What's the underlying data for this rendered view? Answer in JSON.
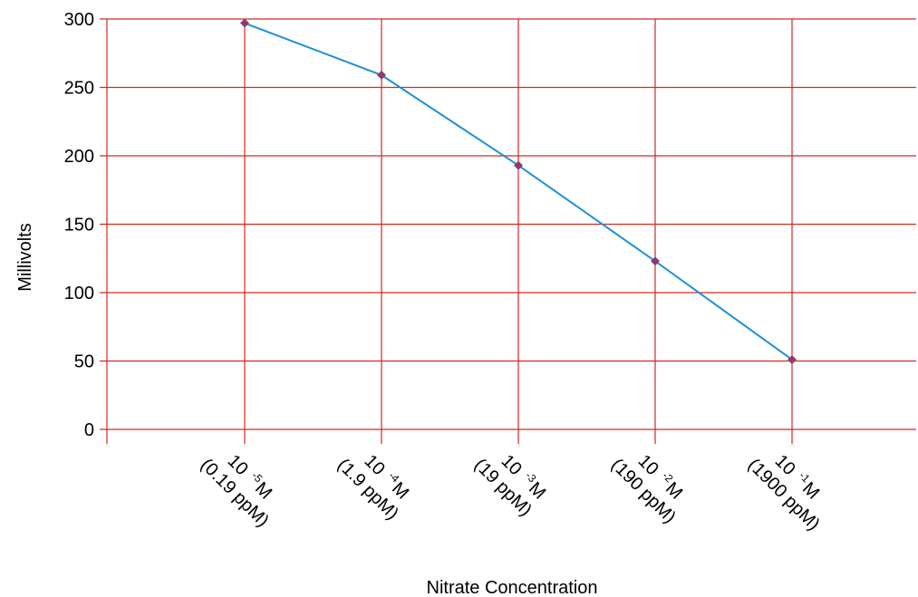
{
  "chart_data": {
    "type": "line",
    "title": "",
    "xlabel": "Nitrate Concentration",
    "ylabel": "Millivolts",
    "ylim": [
      0,
      300
    ],
    "yticks": [
      "0",
      "50",
      "100",
      "150",
      "200",
      "250",
      "300"
    ],
    "grid": true,
    "categories": [
      {
        "base": "10",
        "exp": "-5",
        "unit": "M",
        "ppm": "(0.19 ppM)"
      },
      {
        "base": "10",
        "exp": "-4",
        "unit": "M",
        "ppm": "(1.9 ppM)"
      },
      {
        "base": "10",
        "exp": "-3",
        "unit": "M",
        "ppm": "(19 ppM)"
      },
      {
        "base": "10",
        "exp": "-2",
        "unit": "M",
        "ppm": "(190 ppM)"
      },
      {
        "base": "10",
        "exp": "-1",
        "unit": "M",
        "ppm": "(1900 ppM)"
      }
    ],
    "series": [
      {
        "values": [
          297,
          259,
          193,
          123,
          51
        ]
      }
    ],
    "colors": {
      "grid": "#d42a1e",
      "line": "#1e90d8",
      "marker": "#8e3a6e",
      "axis": "#555555"
    }
  }
}
